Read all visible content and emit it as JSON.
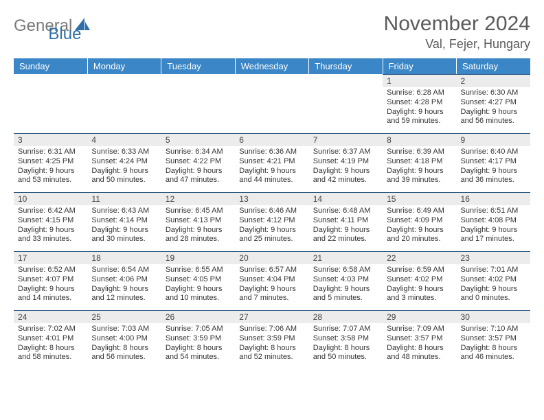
{
  "logo": {
    "text1": "General",
    "text2": "Blue"
  },
  "title": "November 2024",
  "location": "Val, Fejer, Hungary",
  "colors": {
    "header_bg": "#3b86c6",
    "header_text": "#ffffff",
    "daynum_bg": "#ececec",
    "day_border": "#2f5a84",
    "title_color": "#5b5b5b",
    "logo_gray": "#7a7a7a",
    "logo_blue": "#2f6fa8"
  },
  "weekdays": [
    "Sunday",
    "Monday",
    "Tuesday",
    "Wednesday",
    "Thursday",
    "Friday",
    "Saturday"
  ],
  "weeks": [
    [
      null,
      null,
      null,
      null,
      null,
      {
        "n": "1",
        "sr": "Sunrise: 6:28 AM",
        "ss": "Sunset: 4:28 PM",
        "d1": "Daylight: 9 hours",
        "d2": "and 59 minutes."
      },
      {
        "n": "2",
        "sr": "Sunrise: 6:30 AM",
        "ss": "Sunset: 4:27 PM",
        "d1": "Daylight: 9 hours",
        "d2": "and 56 minutes."
      }
    ],
    [
      {
        "n": "3",
        "sr": "Sunrise: 6:31 AM",
        "ss": "Sunset: 4:25 PM",
        "d1": "Daylight: 9 hours",
        "d2": "and 53 minutes."
      },
      {
        "n": "4",
        "sr": "Sunrise: 6:33 AM",
        "ss": "Sunset: 4:24 PM",
        "d1": "Daylight: 9 hours",
        "d2": "and 50 minutes."
      },
      {
        "n": "5",
        "sr": "Sunrise: 6:34 AM",
        "ss": "Sunset: 4:22 PM",
        "d1": "Daylight: 9 hours",
        "d2": "and 47 minutes."
      },
      {
        "n": "6",
        "sr": "Sunrise: 6:36 AM",
        "ss": "Sunset: 4:21 PM",
        "d1": "Daylight: 9 hours",
        "d2": "and 44 minutes."
      },
      {
        "n": "7",
        "sr": "Sunrise: 6:37 AM",
        "ss": "Sunset: 4:19 PM",
        "d1": "Daylight: 9 hours",
        "d2": "and 42 minutes."
      },
      {
        "n": "8",
        "sr": "Sunrise: 6:39 AM",
        "ss": "Sunset: 4:18 PM",
        "d1": "Daylight: 9 hours",
        "d2": "and 39 minutes."
      },
      {
        "n": "9",
        "sr": "Sunrise: 6:40 AM",
        "ss": "Sunset: 4:17 PM",
        "d1": "Daylight: 9 hours",
        "d2": "and 36 minutes."
      }
    ],
    [
      {
        "n": "10",
        "sr": "Sunrise: 6:42 AM",
        "ss": "Sunset: 4:15 PM",
        "d1": "Daylight: 9 hours",
        "d2": "and 33 minutes."
      },
      {
        "n": "11",
        "sr": "Sunrise: 6:43 AM",
        "ss": "Sunset: 4:14 PM",
        "d1": "Daylight: 9 hours",
        "d2": "and 30 minutes."
      },
      {
        "n": "12",
        "sr": "Sunrise: 6:45 AM",
        "ss": "Sunset: 4:13 PM",
        "d1": "Daylight: 9 hours",
        "d2": "and 28 minutes."
      },
      {
        "n": "13",
        "sr": "Sunrise: 6:46 AM",
        "ss": "Sunset: 4:12 PM",
        "d1": "Daylight: 9 hours",
        "d2": "and 25 minutes."
      },
      {
        "n": "14",
        "sr": "Sunrise: 6:48 AM",
        "ss": "Sunset: 4:11 PM",
        "d1": "Daylight: 9 hours",
        "d2": "and 22 minutes."
      },
      {
        "n": "15",
        "sr": "Sunrise: 6:49 AM",
        "ss": "Sunset: 4:09 PM",
        "d1": "Daylight: 9 hours",
        "d2": "and 20 minutes."
      },
      {
        "n": "16",
        "sr": "Sunrise: 6:51 AM",
        "ss": "Sunset: 4:08 PM",
        "d1": "Daylight: 9 hours",
        "d2": "and 17 minutes."
      }
    ],
    [
      {
        "n": "17",
        "sr": "Sunrise: 6:52 AM",
        "ss": "Sunset: 4:07 PM",
        "d1": "Daylight: 9 hours",
        "d2": "and 14 minutes."
      },
      {
        "n": "18",
        "sr": "Sunrise: 6:54 AM",
        "ss": "Sunset: 4:06 PM",
        "d1": "Daylight: 9 hours",
        "d2": "and 12 minutes."
      },
      {
        "n": "19",
        "sr": "Sunrise: 6:55 AM",
        "ss": "Sunset: 4:05 PM",
        "d1": "Daylight: 9 hours",
        "d2": "and 10 minutes."
      },
      {
        "n": "20",
        "sr": "Sunrise: 6:57 AM",
        "ss": "Sunset: 4:04 PM",
        "d1": "Daylight: 9 hours",
        "d2": "and 7 minutes."
      },
      {
        "n": "21",
        "sr": "Sunrise: 6:58 AM",
        "ss": "Sunset: 4:03 PM",
        "d1": "Daylight: 9 hours",
        "d2": "and 5 minutes."
      },
      {
        "n": "22",
        "sr": "Sunrise: 6:59 AM",
        "ss": "Sunset: 4:02 PM",
        "d1": "Daylight: 9 hours",
        "d2": "and 3 minutes."
      },
      {
        "n": "23",
        "sr": "Sunrise: 7:01 AM",
        "ss": "Sunset: 4:02 PM",
        "d1": "Daylight: 9 hours",
        "d2": "and 0 minutes."
      }
    ],
    [
      {
        "n": "24",
        "sr": "Sunrise: 7:02 AM",
        "ss": "Sunset: 4:01 PM",
        "d1": "Daylight: 8 hours",
        "d2": "and 58 minutes."
      },
      {
        "n": "25",
        "sr": "Sunrise: 7:03 AM",
        "ss": "Sunset: 4:00 PM",
        "d1": "Daylight: 8 hours",
        "d2": "and 56 minutes."
      },
      {
        "n": "26",
        "sr": "Sunrise: 7:05 AM",
        "ss": "Sunset: 3:59 PM",
        "d1": "Daylight: 8 hours",
        "d2": "and 54 minutes."
      },
      {
        "n": "27",
        "sr": "Sunrise: 7:06 AM",
        "ss": "Sunset: 3:59 PM",
        "d1": "Daylight: 8 hours",
        "d2": "and 52 minutes."
      },
      {
        "n": "28",
        "sr": "Sunrise: 7:07 AM",
        "ss": "Sunset: 3:58 PM",
        "d1": "Daylight: 8 hours",
        "d2": "and 50 minutes."
      },
      {
        "n": "29",
        "sr": "Sunrise: 7:09 AM",
        "ss": "Sunset: 3:57 PM",
        "d1": "Daylight: 8 hours",
        "d2": "and 48 minutes."
      },
      {
        "n": "30",
        "sr": "Sunrise: 7:10 AM",
        "ss": "Sunset: 3:57 PM",
        "d1": "Daylight: 8 hours",
        "d2": "and 46 minutes."
      }
    ]
  ]
}
